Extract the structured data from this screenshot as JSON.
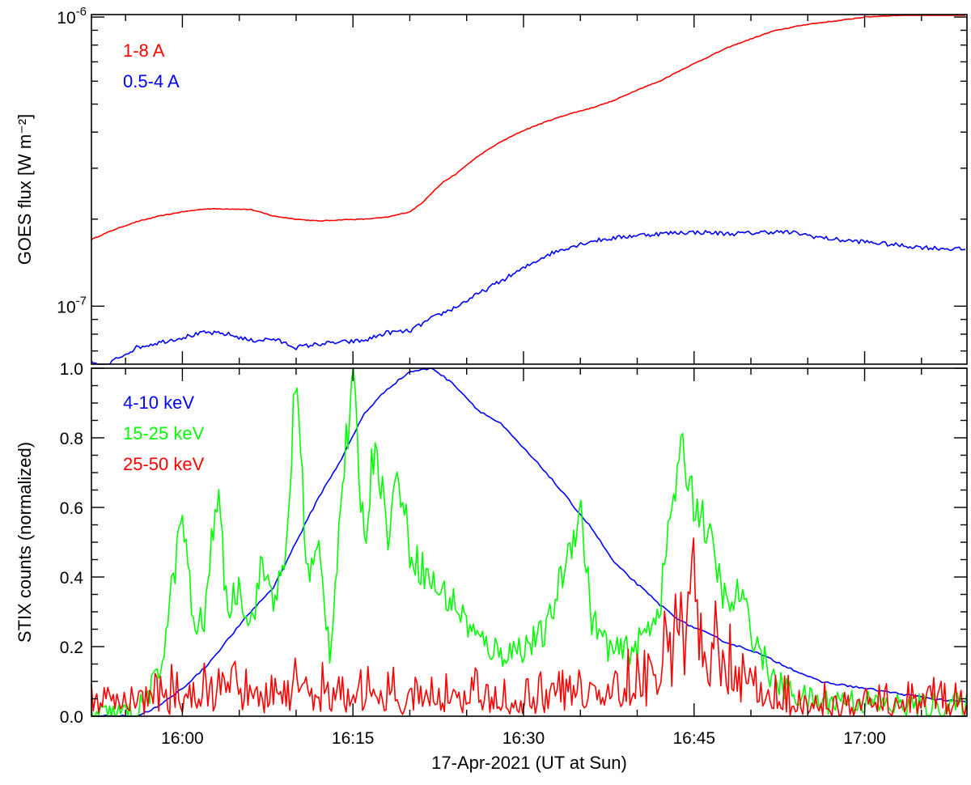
{
  "chart_data": [
    {
      "panel": "top",
      "type": "line",
      "ylabel": "GOES flux [W m⁻²]",
      "yscale": "log",
      "ylim": [
        6.3e-08,
        1.02e-06
      ],
      "xlim": [
        "15:52",
        "17:09"
      ],
      "y_tick_labels": [
        {
          "value": 1e-06,
          "base": "10",
          "exp": "-6"
        },
        {
          "value": 1e-07,
          "base": "10",
          "exp": "-7"
        }
      ],
      "legend": "top-left",
      "series": [
        {
          "name": "1-8 A",
          "color": "#ff0000",
          "x": [
            "15:52",
            "15:54",
            "15:56",
            "15:58",
            "16:00",
            "16:02",
            "16:04",
            "16:06",
            "16:08",
            "16:10",
            "16:12",
            "16:14",
            "16:16",
            "16:18",
            "16:20",
            "16:21",
            "16:22",
            "16:23",
            "16:24",
            "16:26",
            "16:28",
            "16:30",
            "16:32",
            "16:34",
            "16:36",
            "16:38",
            "16:40",
            "16:42",
            "16:44",
            "16:46",
            "16:48",
            "16:50",
            "16:52",
            "16:55",
            "16:58",
            "17:00",
            "17:02",
            "17:05",
            "17:09"
          ],
          "values": [
            1.7e-07,
            1.84e-07,
            1.96e-07,
            2.05e-07,
            2.12e-07,
            2.17e-07,
            2.17e-07,
            2.16e-07,
            2.05e-07,
            2e-07,
            1.97e-07,
            1.99e-07,
            2e-07,
            2.03e-07,
            2.12e-07,
            2.26e-07,
            2.48e-07,
            2.7e-07,
            2.85e-07,
            3.3e-07,
            3.7e-07,
            4.05e-07,
            4.35e-07,
            4.62e-07,
            4.85e-07,
            5.15e-07,
            5.6e-07,
            6e-07,
            6.6e-07,
            7.2e-07,
            7.85e-07,
            8.4e-07,
            8.95e-07,
            9.45e-07,
            9.75e-07,
            1e-06,
            1.01e-06,
            1.02e-06,
            1.02e-06
          ]
        },
        {
          "name": "0.5-4 A",
          "color": "#0000ff",
          "x": [
            "15:52",
            "15:53",
            "15:54",
            "15:56",
            "15:58",
            "16:00",
            "16:02",
            "16:04",
            "16:06",
            "16:08",
            "16:10",
            "16:12",
            "16:14",
            "16:16",
            "16:18",
            "16:20",
            "16:22",
            "16:24",
            "16:26",
            "16:28",
            "16:30",
            "16:32",
            "16:34",
            "16:36",
            "16:38",
            "16:40",
            "16:42",
            "16:44",
            "16:46",
            "16:48",
            "16:50",
            "16:52",
            "16:54",
            "16:56",
            "16:58",
            "17:00",
            "17:02",
            "17:04",
            "17:06",
            "17:09"
          ],
          "values": [
            6.4e-08,
            6e-08,
            6.5e-08,
            7.2e-08,
            7.5e-08,
            7.8e-08,
            8.1e-08,
            8e-08,
            7.6e-08,
            7.7e-08,
            7.2e-08,
            7.4e-08,
            7.5e-08,
            7.6e-08,
            8.1e-08,
            8.2e-08,
            9.1e-08,
            9.9e-08,
            1.1e-07,
            1.22e-07,
            1.35e-07,
            1.5e-07,
            1.6e-07,
            1.68e-07,
            1.72e-07,
            1.76e-07,
            1.78e-07,
            1.8e-07,
            1.8e-07,
            1.78e-07,
            1.79e-07,
            1.81e-07,
            1.79e-07,
            1.73e-07,
            1.69e-07,
            1.67e-07,
            1.64e-07,
            1.61e-07,
            1.59e-07,
            1.57e-07
          ]
        }
      ]
    },
    {
      "panel": "bottom",
      "type": "line",
      "ylabel": "STIX counts (normalized)",
      "xlabel": "17-Apr-2021 (UT at Sun)",
      "ylim": [
        0,
        1.0
      ],
      "xlim": [
        "15:52",
        "17:09"
      ],
      "y_tick_labels": [
        "0.0",
        "0.2",
        "0.4",
        "0.6",
        "0.8",
        "1.0"
      ],
      "x_tick_labels": [
        "16:00",
        "16:15",
        "16:30",
        "16:45",
        "17:00"
      ],
      "legend": "top-left",
      "series": [
        {
          "name": "4-10 keV",
          "color": "#0000ff",
          "x": [
            "15:52",
            "15:56",
            "15:58",
            "16:00",
            "16:02",
            "16:04",
            "16:06",
            "16:08",
            "16:10",
            "16:12",
            "16:14",
            "16:16",
            "16:18",
            "16:20",
            "16:22",
            "16:24",
            "16:26",
            "16:28",
            "16:30",
            "16:32",
            "16:34",
            "16:36",
            "16:38",
            "16:40",
            "16:42",
            "16:44",
            "16:46",
            "16:48",
            "16:50",
            "16:52",
            "16:54",
            "16:56",
            "16:58",
            "17:00",
            "17:02",
            "17:04",
            "17:06",
            "17:09"
          ],
          "values": [
            0.0,
            0.0,
            0.03,
            0.08,
            0.14,
            0.22,
            0.3,
            0.37,
            0.5,
            0.63,
            0.74,
            0.87,
            0.94,
            0.99,
            1.0,
            0.95,
            0.88,
            0.84,
            0.77,
            0.7,
            0.62,
            0.54,
            0.44,
            0.38,
            0.32,
            0.27,
            0.24,
            0.21,
            0.19,
            0.16,
            0.13,
            0.1,
            0.09,
            0.08,
            0.07,
            0.06,
            0.05,
            0.04
          ]
        },
        {
          "name": "15-25 keV",
          "color": "#00ff00",
          "x": [
            "15:52",
            "15:56",
            "15:58",
            "15:59",
            "16:00",
            "16:01",
            "16:02",
            "16:03",
            "16:04",
            "16:05",
            "16:06",
            "16:07",
            "16:08",
            "16:09",
            "16:10",
            "16:11",
            "16:12",
            "16:13",
            "16:14",
            "16:15",
            "16:16",
            "16:17",
            "16:18",
            "16:19",
            "16:20",
            "16:22",
            "16:24",
            "16:26",
            "16:28",
            "16:30",
            "16:32",
            "16:34",
            "16:35",
            "16:36",
            "16:37",
            "16:38",
            "16:40",
            "16:42",
            "16:43",
            "16:44",
            "16:45",
            "16:46",
            "16:48",
            "16:49",
            "16:50",
            "16:52",
            "16:54",
            "16:56",
            "16:58",
            "17:00",
            "17:02",
            "17:04",
            "17:06",
            "17:09"
          ],
          "values": [
            0.0,
            0.01,
            0.12,
            0.35,
            0.58,
            0.25,
            0.28,
            0.66,
            0.3,
            0.38,
            0.26,
            0.43,
            0.35,
            0.4,
            1.0,
            0.4,
            0.47,
            0.18,
            0.65,
            0.95,
            0.5,
            0.82,
            0.52,
            0.7,
            0.48,
            0.38,
            0.32,
            0.22,
            0.18,
            0.2,
            0.24,
            0.48,
            0.6,
            0.28,
            0.22,
            0.18,
            0.2,
            0.32,
            0.6,
            0.76,
            0.62,
            0.55,
            0.3,
            0.36,
            0.25,
            0.1,
            0.06,
            0.04,
            0.05,
            0.04,
            0.03,
            0.03,
            0.03,
            0.03
          ]
        },
        {
          "name": "25-50 keV",
          "color": "#ff0000",
          "x": [
            "15:52",
            "15:56",
            "15:58",
            "16:00",
            "16:04",
            "16:08",
            "16:10",
            "16:12",
            "16:16",
            "16:20",
            "16:24",
            "16:28",
            "16:32",
            "16:36",
            "16:38",
            "16:40",
            "16:42",
            "16:43",
            "16:44",
            "16:45",
            "16:46",
            "16:47",
            "16:48",
            "16:50",
            "16:52",
            "16:54",
            "16:56",
            "16:58",
            "17:00",
            "17:04",
            "17:09"
          ],
          "values": [
            0.06,
            0.04,
            0.05,
            0.05,
            0.06,
            0.06,
            0.09,
            0.05,
            0.06,
            0.05,
            0.06,
            0.04,
            0.05,
            0.06,
            0.07,
            0.09,
            0.12,
            0.18,
            0.24,
            0.26,
            0.22,
            0.18,
            0.13,
            0.08,
            0.04,
            0.03,
            0.03,
            0.03,
            0.04,
            0.04,
            0.03
          ]
        }
      ]
    }
  ]
}
